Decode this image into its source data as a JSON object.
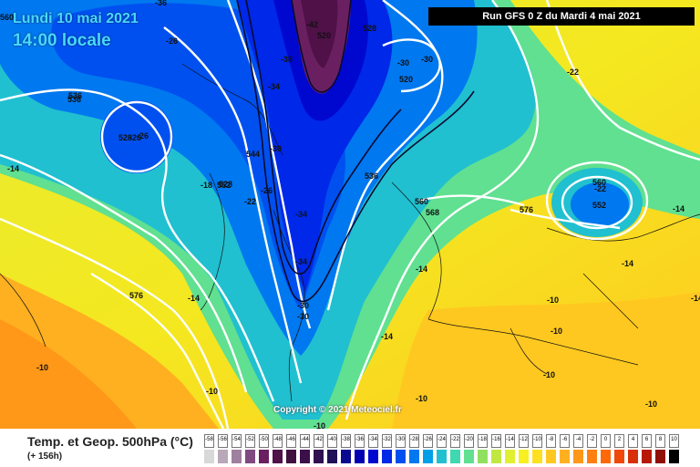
{
  "header": {
    "date": "Lundi 10 mai 2021",
    "time": "14:00 locale",
    "run": "Run GFS 0 Z du Mardi 4 mai 2021"
  },
  "footer": {
    "title": "Temp. et Geop. 500hPa (°C)",
    "subtitle": "(+ 156h)",
    "copyright": "Copyright © 2021 Meteociel.fr"
  },
  "legend": {
    "values": [
      "-58",
      "-56",
      "-54",
      "-52",
      "-50",
      "-48",
      "-46",
      "-44",
      "-42",
      "-40",
      "-38",
      "-36",
      "-34",
      "-32",
      "-30",
      "-28",
      "-26",
      "-24",
      "-22",
      "-20",
      "-18",
      "-16",
      "-14",
      "-12",
      "-10",
      "-8",
      "-6",
      "-4",
      "-2",
      "0",
      "2",
      "4",
      "6",
      "8",
      "10"
    ],
    "colors": [
      "#d8d8d8",
      "#b8a8b8",
      "#a080a0",
      "#804a80",
      "#6a2060",
      "#501048",
      "#401040",
      "#3a0f4a",
      "#301050",
      "#20105a",
      "#0a0a90",
      "#0000b0",
      "#0008d0",
      "#0028e8",
      "#0050f0",
      "#0078f0",
      "#00a0e8",
      "#20c0d0",
      "#40d8b0",
      "#60e090",
      "#90e060",
      "#c0e840",
      "#e0f030",
      "#f8f020",
      "#ffe020",
      "#ffc820",
      "#ffb020",
      "#ff9818",
      "#ff8010",
      "#ff6808",
      "#f04808",
      "#d83008",
      "#b81808",
      "#901008",
      "#000000"
    ]
  },
  "map": {
    "geopotential_labels": [
      "536",
      "528",
      "520",
      "528",
      "520",
      "536",
      "528",
      "544",
      "552",
      "536",
      "560",
      "568",
      "576",
      "576",
      "560",
      "552",
      "560"
    ],
    "temperature_labels": [
      "-36",
      "-42",
      "-38",
      "-30",
      "-30",
      "-34",
      "-26",
      "-26",
      "-30",
      "-26",
      "-22",
      "-18",
      "-14",
      "-34",
      "-34",
      "-30",
      "-30",
      "-22",
      "-22",
      "-14",
      "-14",
      "-14",
      "-14",
      "-10",
      "-10",
      "-10",
      "-10",
      "-10",
      "-10",
      "-10",
      "-14",
      "-14",
      "-10",
      "-26"
    ]
  }
}
